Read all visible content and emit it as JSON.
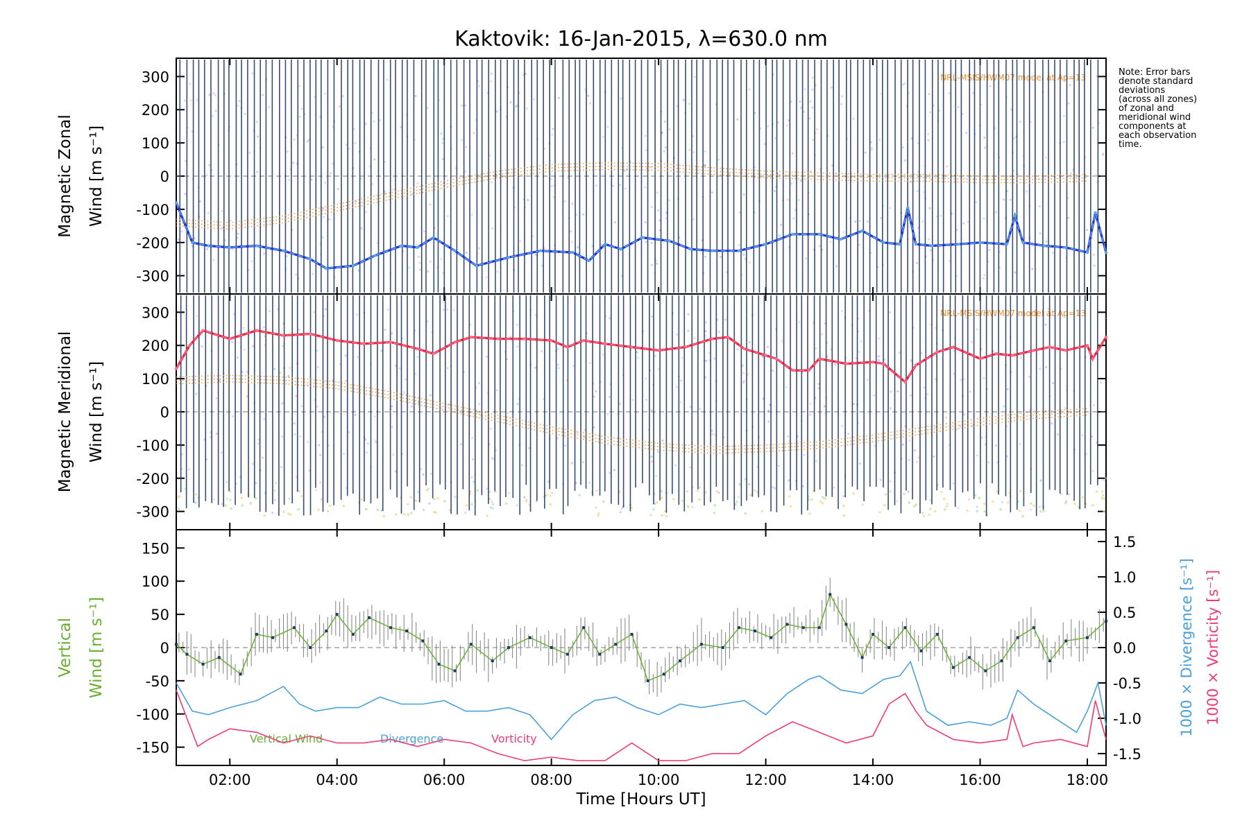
{
  "chart_data": {
    "title": "Kaktovik: 16-Jan-2015, λ=630.0 nm",
    "note": [
      "Note: Error bars",
      "denote standard",
      "deviations",
      "(across all zones)",
      "of zonal and",
      "meridional wind",
      "components at",
      "each observation",
      "time."
    ],
    "xlabel": "Time [Hours UT]",
    "xlim": [
      1.0,
      18.35
    ],
    "xticks": [
      "02:00",
      "04:00",
      "06:00",
      "08:00",
      "10:00",
      "12:00",
      "14:00",
      "16:00",
      "18:00"
    ],
    "xtick_values": [
      2,
      4,
      6,
      8,
      10,
      12,
      14,
      16,
      18
    ],
    "colors": {
      "zonal_fit": "#2030d8",
      "zonal_data": "#5aaae0",
      "meridional_fit": "#e8203c",
      "meridional_data": "#ff6a88",
      "error_bars": "#1f3a5f",
      "model": "#ff8c1a",
      "vertical": "#66b032",
      "divergence": "#4aa0d8",
      "vorticity": "#ee3a78"
    },
    "panels": [
      {
        "type": "line",
        "ylabel_line1": "Magnetic Zonal",
        "ylabel_line2": "Wind [m s⁻¹]",
        "ylim": [
          -330,
          330
        ],
        "yticks": [
          300,
          200,
          100,
          0,
          -100,
          -200,
          -300
        ],
        "model_label": "NRL-MSIS/HWM07 model at Ap=13",
        "series": [
          {
            "name": "Zonal wind",
            "x": [
              1.0,
              1.3,
              1.6,
              2.0,
              2.5,
              3.0,
              3.5,
              3.8,
              4.3,
              4.7,
              5.2,
              5.5,
              5.8,
              6.2,
              6.6,
              7.2,
              7.8,
              8.4,
              8.7,
              9.0,
              9.3,
              9.7,
              10.2,
              10.6,
              11.0,
              11.5,
              12.0,
              12.5,
              13.0,
              13.4,
              13.8,
              14.2,
              14.5,
              14.65,
              14.8,
              15.1,
              15.6,
              16.0,
              16.5,
              16.65,
              16.8,
              17.2,
              17.6,
              18.0,
              18.15,
              18.35
            ],
            "y": [
              -80,
              -200,
              -210,
              -215,
              -210,
              -225,
              -250,
              -278,
              -270,
              -240,
              -210,
              -215,
              -185,
              -225,
              -270,
              -245,
              -225,
              -230,
              -255,
              -205,
              -220,
              -185,
              -195,
              -220,
              -225,
              -225,
              -205,
              -175,
              -175,
              -190,
              -165,
              -200,
              -205,
              -95,
              -205,
              -210,
              -205,
              -200,
              -205,
              -120,
              -200,
              -210,
              -215,
              -230,
              -110,
              -230
            ]
          }
        ],
        "model_curve": {
          "x": [
            1.0,
            2.0,
            3.0,
            4.0,
            5.0,
            6.0,
            7.0,
            8.0,
            9.0,
            10.0,
            11.0,
            12.0,
            13.0,
            14.0,
            15.0,
            16.0,
            17.0,
            18.0
          ],
          "y": [
            -140,
            -150,
            -130,
            -95,
            -60,
            -25,
            5,
            25,
            30,
            28,
            15,
            5,
            0,
            -5,
            -5,
            -10,
            -10,
            -5
          ]
        }
      },
      {
        "type": "line",
        "ylabel_line1": "Magnetic Meridional",
        "ylabel_line2": "Wind [m s⁻¹]",
        "ylim": [
          -330,
          330
        ],
        "yticks": [
          300,
          200,
          100,
          0,
          -100,
          -200,
          -300
        ],
        "model_label": "NRL-MSIS/HWM07 model at Ap=13",
        "series": [
          {
            "name": "Meridional wind",
            "x": [
              1.0,
              1.25,
              1.5,
              2.0,
              2.5,
              3.0,
              3.5,
              4.0,
              4.5,
              5.0,
              5.5,
              5.8,
              6.2,
              6.5,
              7.0,
              7.5,
              8.0,
              8.3,
              8.6,
              9.0,
              9.5,
              10.0,
              10.5,
              11.0,
              11.3,
              11.6,
              12.0,
              12.2,
              12.5,
              12.8,
              13.0,
              13.5,
              14.0,
              14.2,
              14.6,
              14.8,
              15.2,
              15.5,
              16.0,
              16.3,
              16.6,
              17.0,
              17.3,
              17.6,
              18.0,
              18.1,
              18.35
            ],
            "y": [
              130,
              200,
              245,
              220,
              245,
              230,
              235,
              215,
              205,
              210,
              190,
              175,
              210,
              225,
              220,
              220,
              215,
              195,
              215,
              205,
              195,
              185,
              195,
              220,
              225,
              190,
              170,
              160,
              125,
              125,
              160,
              145,
              150,
              145,
              90,
              140,
              180,
              195,
              160,
              175,
              170,
              185,
              195,
              185,
              200,
              160,
              225
            ]
          }
        ],
        "model_curve": {
          "x": [
            1.0,
            2.0,
            3.0,
            4.0,
            5.0,
            6.0,
            7.0,
            8.0,
            9.0,
            10.0,
            11.0,
            12.0,
            13.0,
            14.0,
            15.0,
            16.0,
            17.0,
            18.0
          ],
          "y": [
            95,
            100,
            95,
            80,
            50,
            15,
            -20,
            -55,
            -85,
            -105,
            -115,
            -110,
            -100,
            -80,
            -55,
            -30,
            -10,
            0
          ]
        }
      },
      {
        "type": "line",
        "ylabel_line1": "Vertical",
        "ylabel_line2": "Wind [m s⁻¹]",
        "ylim": [
          -165,
          165
        ],
        "yticks": [
          150,
          100,
          50,
          0,
          -50,
          -100,
          -150
        ],
        "y2label_line1": "1000 × Divergence [s⁻¹]",
        "y2label_line2": "1000 × Vorticity [s⁻¹]",
        "y2lim": [
          -1.55,
          1.55
        ],
        "y2ticks": [
          "1.5",
          "1.0",
          "0.5",
          "0.0",
          "-0.5",
          "-1.0",
          "-1.5"
        ],
        "y2tick_values": [
          1.5,
          1.0,
          0.5,
          0.0,
          -0.5,
          -1.0,
          -1.5
        ],
        "legend": [
          "Vertical Wind",
          "Divergence",
          "Vorticity"
        ],
        "series": [
          {
            "name": "Vertical Wind",
            "x": [
              1.0,
              1.2,
              1.5,
              1.8,
              2.2,
              2.5,
              2.8,
              3.2,
              3.5,
              3.8,
              4.0,
              4.3,
              4.6,
              5.0,
              5.3,
              5.6,
              5.9,
              6.2,
              6.5,
              6.9,
              7.2,
              7.6,
              8.0,
              8.3,
              8.6,
              8.9,
              9.2,
              9.5,
              9.8,
              10.1,
              10.4,
              10.8,
              11.2,
              11.5,
              11.8,
              12.1,
              12.4,
              12.7,
              13.0,
              13.2,
              13.5,
              13.8,
              14.0,
              14.3,
              14.6,
              14.9,
              15.2,
              15.5,
              15.8,
              16.1,
              16.4,
              16.7,
              17.0,
              17.3,
              17.6,
              18.0,
              18.35
            ],
            "y": [
              5,
              -10,
              -25,
              -15,
              -40,
              20,
              15,
              30,
              0,
              25,
              50,
              20,
              45,
              30,
              25,
              10,
              -25,
              -35,
              5,
              -20,
              0,
              15,
              0,
              -10,
              30,
              -10,
              5,
              20,
              -50,
              -40,
              -20,
              5,
              0,
              30,
              25,
              15,
              35,
              30,
              30,
              80,
              35,
              -15,
              20,
              0,
              30,
              -5,
              20,
              -30,
              -15,
              -35,
              -20,
              15,
              30,
              -20,
              10,
              15,
              40
            ]
          },
          {
            "name": "Divergence",
            "x": [
              1.0,
              1.3,
              1.6,
              2.0,
              2.5,
              3.0,
              3.3,
              3.6,
              4.0,
              4.4,
              4.8,
              5.2,
              5.6,
              6.0,
              6.4,
              6.8,
              7.2,
              7.6,
              8.0,
              8.4,
              8.8,
              9.2,
              9.6,
              10.0,
              10.4,
              10.8,
              11.2,
              11.6,
              12.0,
              12.4,
              12.8,
              13.0,
              13.4,
              13.8,
              14.2,
              14.5,
              14.7,
              15.0,
              15.4,
              15.8,
              16.2,
              16.5,
              16.7,
              17.0,
              17.4,
              17.8,
              18.0,
              18.2,
              18.35
            ],
            "y": [
              -0.5,
              -0.9,
              -0.95,
              -0.85,
              -0.75,
              -0.55,
              -0.8,
              -0.9,
              -0.85,
              -0.85,
              -0.7,
              -0.8,
              -0.8,
              -0.75,
              -0.9,
              -0.9,
              -0.85,
              -0.95,
              -1.3,
              -0.95,
              -0.75,
              -0.7,
              -0.85,
              -0.95,
              -0.8,
              -0.85,
              -0.8,
              -0.75,
              -0.95,
              -0.65,
              -0.45,
              -0.4,
              -0.6,
              -0.65,
              -0.45,
              -0.4,
              -0.2,
              -0.9,
              -1.1,
              -1.05,
              -1.1,
              -1.0,
              -0.6,
              -0.8,
              -1.0,
              -1.2,
              -0.9,
              -0.5,
              -1.1
            ]
          },
          {
            "name": "Vorticity",
            "x": [
              1.0,
              1.2,
              1.4,
              1.6,
              2.0,
              2.5,
              3.0,
              3.5,
              4.0,
              4.5,
              5.0,
              5.5,
              6.0,
              6.5,
              7.0,
              7.5,
              8.0,
              8.5,
              9.0,
              9.5,
              10.0,
              10.5,
              11.0,
              11.5,
              12.0,
              12.5,
              13.0,
              13.5,
              14.0,
              14.3,
              14.6,
              14.8,
              15.0,
              15.5,
              16.0,
              16.5,
              16.6,
              16.8,
              17.0,
              17.5,
              18.0,
              18.15,
              18.35
            ],
            "y": [
              -0.6,
              -1.0,
              -1.4,
              -1.3,
              -1.15,
              -1.2,
              -1.35,
              -1.25,
              -1.35,
              -1.35,
              -1.3,
              -1.4,
              -1.3,
              -1.35,
              -1.5,
              -1.6,
              -1.55,
              -1.6,
              -1.6,
              -1.35,
              -1.6,
              -1.6,
              -1.5,
              -1.5,
              -1.25,
              -1.05,
              -1.2,
              -1.35,
              -1.25,
              -0.8,
              -0.65,
              -0.9,
              -1.1,
              -1.3,
              -1.35,
              -1.3,
              -0.95,
              -1.4,
              -1.35,
              -1.3,
              -1.4,
              -0.75,
              -1.3
            ]
          }
        ]
      }
    ]
  }
}
